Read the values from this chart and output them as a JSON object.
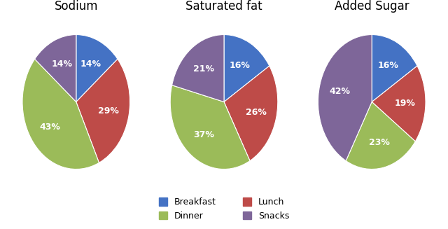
{
  "charts": [
    {
      "title": "Sodium",
      "values": [
        14,
        29,
        43,
        14
      ],
      "labels": [
        "14%",
        "29%",
        "43%",
        "14%"
      ],
      "order": [
        "Breakfast",
        "Lunch",
        "Dinner",
        "Snacks"
      ]
    },
    {
      "title": "Saturated fat",
      "values": [
        16,
        26,
        37,
        21
      ],
      "labels": [
        "16%",
        "26%",
        "37%",
        "21%"
      ],
      "order": [
        "Breakfast",
        "Lunch",
        "Dinner",
        "Snacks"
      ]
    },
    {
      "title": "Added Sugar",
      "values": [
        16,
        19,
        23,
        42
      ],
      "labels": [
        "16%",
        "19%",
        "23%",
        "42%"
      ],
      "order": [
        "Breakfast",
        "Lunch",
        "Dinner",
        "Snacks"
      ]
    }
  ],
  "colors": {
    "Breakfast": "#4472C4",
    "Lunch": "#BE4B48",
    "Dinner": "#9BBB59",
    "Snacks": "#7E6699"
  },
  "legend_order": [
    "Breakfast",
    "Dinner",
    "Lunch",
    "Snacks"
  ],
  "startangle": 90,
  "text_color": "#FFFFFF",
  "title_fontsize": 12,
  "label_fontsize": 9,
  "legend_fontsize": 9
}
